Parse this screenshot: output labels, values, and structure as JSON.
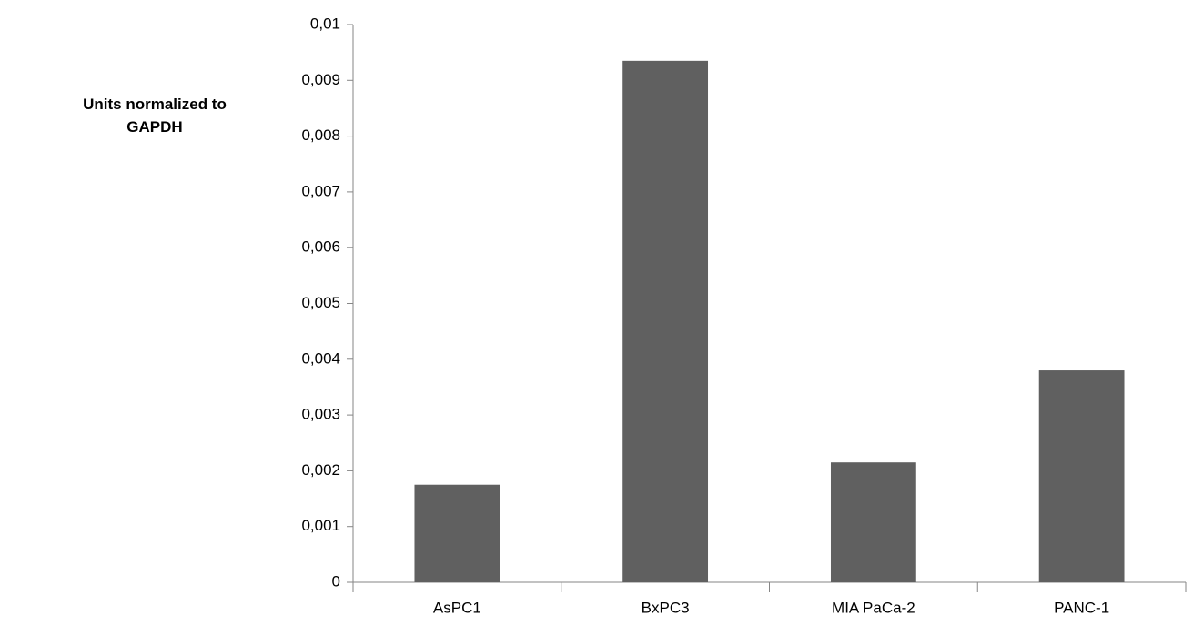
{
  "chart_data": {
    "type": "bar",
    "y_label": "Units normalized to GAPDH",
    "categories": [
      "AsPC1",
      "BxPC3",
      "MIA PaCa-2",
      "PANC-1"
    ],
    "values": [
      0.00175,
      0.00935,
      0.00215,
      0.0038
    ],
    "color": "#606060",
    "ylim": [
      0,
      0.01
    ],
    "yticks": [
      0,
      {
        "value": 0.001,
        "label": "0,001"
      },
      {
        "value": 0.002,
        "label": "0,002"
      },
      {
        "value": 0.003,
        "label": "0,003"
      },
      {
        "value": 0.004,
        "label": "0,004"
      },
      {
        "value": 0.005,
        "label": "0,005"
      },
      {
        "value": 0.006,
        "label": "0,006"
      },
      {
        "value": 0.007,
        "label": "0,007"
      },
      {
        "value": 0.008,
        "label": "0,008"
      },
      {
        "value": 0.009,
        "label": "0,009"
      },
      {
        "value": 0.01,
        "label": "0,01"
      }
    ],
    "grid": false
  }
}
